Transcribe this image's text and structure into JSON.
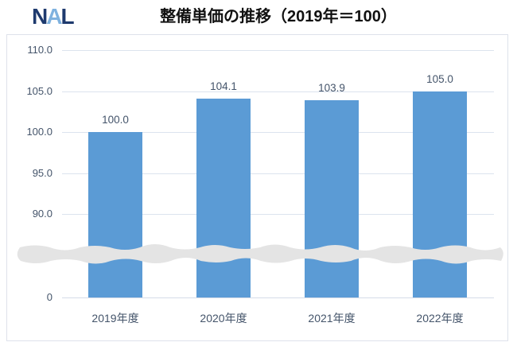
{
  "header": {
    "logo_n": "N",
    "logo_a": "A",
    "logo_l": "L",
    "title": "整備単価の推移（2019年＝100）"
  },
  "chart_data": {
    "type": "bar",
    "title": "整備単価の推移（2019年＝100）",
    "categories": [
      "2019年度",
      "2020年度",
      "2021年度",
      "2022年度"
    ],
    "values": [
      100.0,
      104.1,
      103.9,
      105.0
    ],
    "data_labels": [
      "100.0",
      "104.1",
      "103.9",
      "105.0"
    ],
    "xlabel": "",
    "ylabel": "",
    "y_ticks": [
      {
        "label": "110.0",
        "value": 110
      },
      {
        "label": "105.0",
        "value": 105
      },
      {
        "label": "100.0",
        "value": 100
      },
      {
        "label": "95.0",
        "value": 95
      },
      {
        "label": "90.0",
        "value": 90
      },
      {
        "label": "0",
        "value": 0
      }
    ],
    "ylim": [
      0,
      110
    ],
    "axis_break": "wavy gray band between 0 and 90",
    "grid": "horizontal light gridlines",
    "legend": "none",
    "colors": {
      "bar": "#5B9BD5",
      "labels": "#44546A",
      "gridline": "#DCE3EE",
      "band": "#E4E4E4",
      "border": "#DEE2EB",
      "logo_dark": "#1E3A6E",
      "logo_light": "#7FB2DF"
    }
  }
}
